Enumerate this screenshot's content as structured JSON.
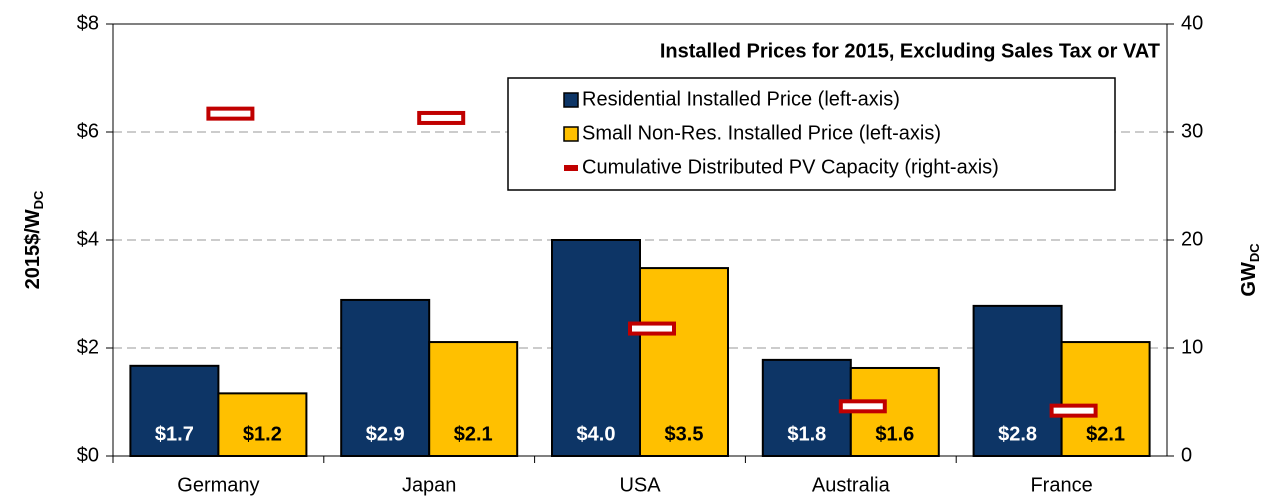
{
  "chart_data": {
    "type": "bar",
    "title": "Installed Prices for 2015, Excluding Sales Tax or VAT",
    "y_label": "2015$/W",
    "y_label_sub": "DC",
    "y2_label": "GW",
    "y2_label_sub": "DC",
    "categories": [
      "Germany",
      "Japan",
      "USA",
      "Australia",
      "France"
    ],
    "series": [
      {
        "name": "Residential Installed Price (left-axis)",
        "color": "#0d3566",
        "values": [
          1.67,
          2.89,
          4.0,
          1.78,
          2.78
        ],
        "value_labels": [
          "$1.7",
          "$2.9",
          "$4.0",
          "$1.8",
          "$2.8"
        ]
      },
      {
        "name": "Small Non-Res. Installed Price (left-axis)",
        "color": "#ffc000",
        "values": [
          1.16,
          2.11,
          3.48,
          1.63,
          2.11
        ],
        "value_labels": [
          "$1.2",
          "$2.1",
          "$3.5",
          "$1.6",
          "$2.1"
        ]
      },
      {
        "name": "Cumulative Distributed PV Capacity (right-axis)",
        "color": "#c00000",
        "axis": "y2",
        "values": [
          31.7,
          31.3,
          11.8,
          4.6,
          4.2
        ]
      }
    ],
    "ylim": [
      0,
      8
    ],
    "yticks": [
      {
        "value": 0,
        "label": "$0"
      },
      {
        "value": 2,
        "label": "$2"
      },
      {
        "value": 4,
        "label": "$4"
      },
      {
        "value": 6,
        "label": "$6"
      },
      {
        "value": 8,
        "label": "$8"
      }
    ],
    "y2lim": [
      0,
      40
    ],
    "y2ticks": [
      0,
      10,
      20,
      30,
      40
    ],
    "grid": true,
    "legend": "top-right"
  }
}
